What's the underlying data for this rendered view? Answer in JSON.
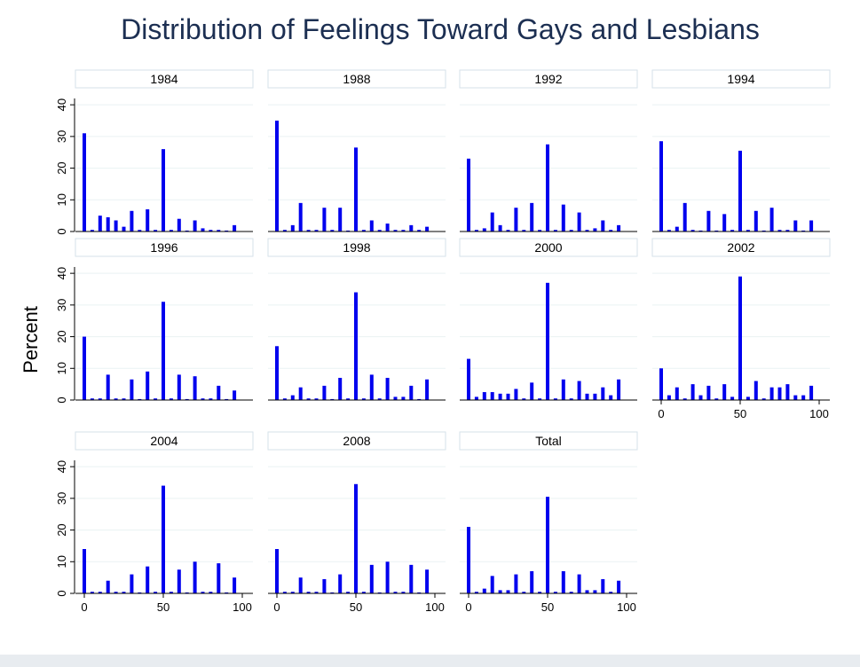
{
  "chart_data": {
    "type": "bar",
    "title": "Distribution of Feelings Toward Gays and Lesbians",
    "ylabel": "Percent",
    "xlabel": "",
    "ylim": [
      0,
      42
    ],
    "xlim": [
      0,
      100
    ],
    "yticks": [
      0,
      10,
      20,
      30,
      40
    ],
    "xticks": [
      0,
      50,
      100
    ],
    "grid": true,
    "bar_color": "#0000ee",
    "x": [
      0,
      5,
      10,
      15,
      20,
      25,
      30,
      35,
      40,
      45,
      50,
      55,
      60,
      65,
      70,
      75,
      80,
      85,
      90,
      95
    ],
    "panels": [
      {
        "name": "1984",
        "values": [
          31,
          0.5,
          5,
          4.5,
          3.5,
          1.5,
          6.5,
          0.5,
          7,
          0.5,
          26,
          0.5,
          4,
          0.3,
          3.5,
          1,
          0.5,
          0.5,
          0.3,
          2
        ]
      },
      {
        "name": "1988",
        "values": [
          35,
          0.5,
          2,
          9,
          0.5,
          0.5,
          7.5,
          0.5,
          7.5,
          0.3,
          26.5,
          0.5,
          3.5,
          0.5,
          2.5,
          0.5,
          0.5,
          2,
          0.5,
          1.5
        ]
      },
      {
        "name": "1992",
        "values": [
          23,
          0.5,
          1,
          6,
          2,
          0.5,
          7.5,
          0.5,
          9,
          0.5,
          27.5,
          0.5,
          8.5,
          0.5,
          6,
          0.5,
          1,
          3.5,
          0.5,
          2
        ]
      },
      {
        "name": "1994",
        "values": [
          28.5,
          0.5,
          1.5,
          9,
          0.5,
          0.3,
          6.5,
          0.3,
          5.5,
          0.5,
          25.5,
          0.5,
          6.5,
          0.3,
          7.5,
          0.5,
          0.5,
          3.5,
          0.3,
          3.5
        ]
      },
      {
        "name": "1996",
        "values": [
          20,
          0.5,
          0.5,
          8,
          0.5,
          0.5,
          6.5,
          0.3,
          9,
          0.5,
          31,
          0.5,
          8,
          0.3,
          7.5,
          0.5,
          0.5,
          4.5,
          0.3,
          3
        ]
      },
      {
        "name": "1998",
        "values": [
          17,
          0.5,
          1.5,
          4,
          0.5,
          0.5,
          4.5,
          0.3,
          7,
          0.5,
          34,
          0.5,
          8,
          0.5,
          7,
          1,
          1,
          4.5,
          0.3,
          6.5
        ]
      },
      {
        "name": "2000",
        "values": [
          13,
          1,
          2.5,
          2.5,
          2,
          2,
          3.5,
          0.5,
          5.5,
          0.5,
          37,
          0.5,
          6.5,
          0.5,
          6,
          2,
          2,
          4,
          1.5,
          6.5
        ]
      },
      {
        "name": "2002",
        "values": [
          10,
          1.5,
          4,
          0.5,
          5,
          1.5,
          4.5,
          0.5,
          5,
          1,
          39,
          1,
          6,
          0.5,
          4,
          4,
          5,
          1.5,
          1.5,
          4.5
        ]
      },
      {
        "name": "2004",
        "values": [
          14,
          0.5,
          0.5,
          4,
          0.5,
          0.5,
          6,
          0.3,
          8.5,
          0.5,
          34,
          0.5,
          7.5,
          0.3,
          10,
          0.5,
          0.5,
          9.5,
          0.3,
          5
        ]
      },
      {
        "name": "2008",
        "values": [
          14,
          0.5,
          0.5,
          5,
          0.5,
          0.5,
          4.5,
          0.3,
          6,
          0.5,
          34.5,
          0.5,
          9,
          0.3,
          10,
          0.5,
          0.5,
          9,
          0.3,
          7.5
        ]
      },
      {
        "name": "Total",
        "values": [
          21,
          0.5,
          1.5,
          5.5,
          1,
          1,
          6,
          0.5,
          7,
          0.5,
          30.5,
          0.5,
          7,
          0.5,
          6,
          1,
          1,
          4.5,
          0.5,
          4
        ]
      }
    ]
  }
}
